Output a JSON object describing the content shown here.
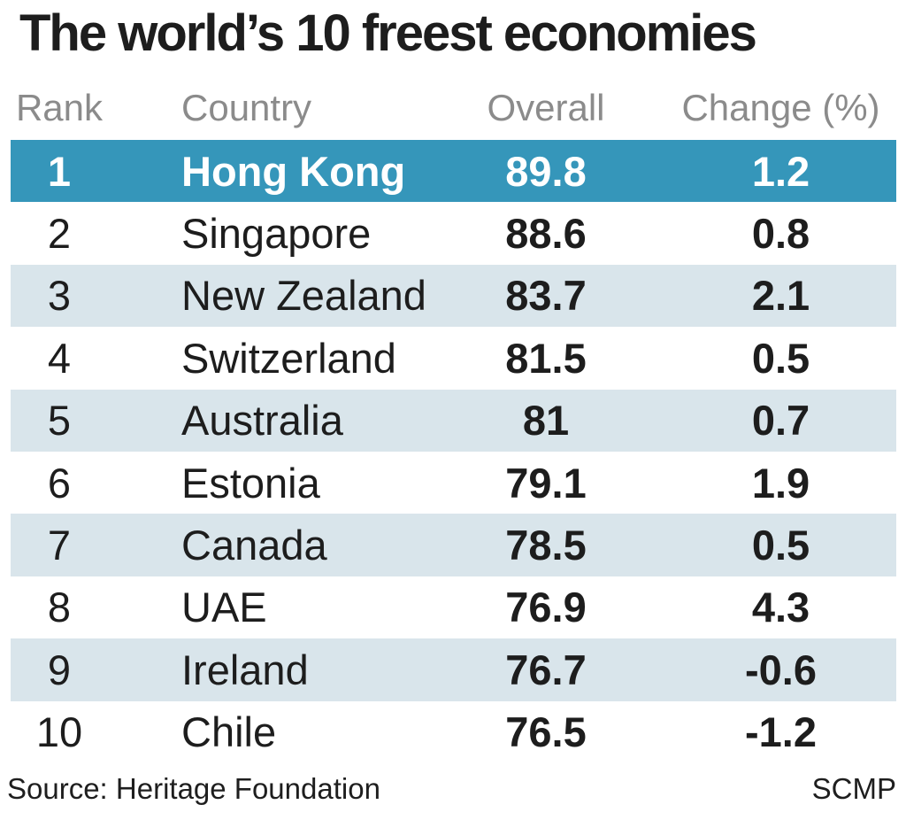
{
  "title": "The world’s 10 freest economies",
  "table": {
    "columns": {
      "rank": "Rank",
      "country": "Country",
      "overall": "Overall",
      "change": "Change (%)"
    },
    "rows": [
      {
        "rank": "1",
        "country": "Hong Kong",
        "overall": "89.8",
        "change": "1.2"
      },
      {
        "rank": "2",
        "country": "Singapore",
        "overall": "88.6",
        "change": "0.8"
      },
      {
        "rank": "3",
        "country": "New Zealand",
        "overall": "83.7",
        "change": "2.1"
      },
      {
        "rank": "4",
        "country": "Switzerland",
        "overall": "81.5",
        "change": "0.5"
      },
      {
        "rank": "5",
        "country": "Australia",
        "overall": "81",
        "change": "0.7"
      },
      {
        "rank": "6",
        "country": "Estonia",
        "overall": "79.1",
        "change": "1.9"
      },
      {
        "rank": "7",
        "country": "Canada",
        "overall": "78.5",
        "change": "0.5"
      },
      {
        "rank": "8",
        "country": "UAE",
        "overall": "76.9",
        "change": "4.3"
      },
      {
        "rank": "9",
        "country": "Ireland",
        "overall": "76.7",
        "change": "-0.6"
      },
      {
        "rank": "10",
        "country": "Chile",
        "overall": "76.5",
        "change": "-1.2"
      }
    ]
  },
  "footer": {
    "source": "Source: Heritage Foundation",
    "credit": "SCMP"
  },
  "colors": {
    "highlight": "#3596ba",
    "highlight_text": "#ffffff",
    "stripe": "#d9e5eb",
    "header_text": "#8b8b8b",
    "text": "#1d1d1d",
    "footer_text": "#1e1e1e"
  },
  "chart_data": {
    "type": "table",
    "title": "The world’s 10 freest economies",
    "columns": [
      "Rank",
      "Country",
      "Overall",
      "Change (%)"
    ],
    "rows": [
      [
        1,
        "Hong Kong",
        89.8,
        1.2
      ],
      [
        2,
        "Singapore",
        88.6,
        0.8
      ],
      [
        3,
        "New Zealand",
        83.7,
        2.1
      ],
      [
        4,
        "Switzerland",
        81.5,
        0.5
      ],
      [
        5,
        "Australia",
        81,
        0.7
      ],
      [
        6,
        "Estonia",
        79.1,
        1.9
      ],
      [
        7,
        "Canada",
        78.5,
        0.5
      ],
      [
        8,
        "UAE",
        76.9,
        4.3
      ],
      [
        9,
        "Ireland",
        76.7,
        -0.6
      ],
      [
        10,
        "Chile",
        76.5,
        -1.2
      ]
    ],
    "highlighted_row_rank": 1,
    "source": "Heritage Foundation",
    "credit": "SCMP"
  }
}
